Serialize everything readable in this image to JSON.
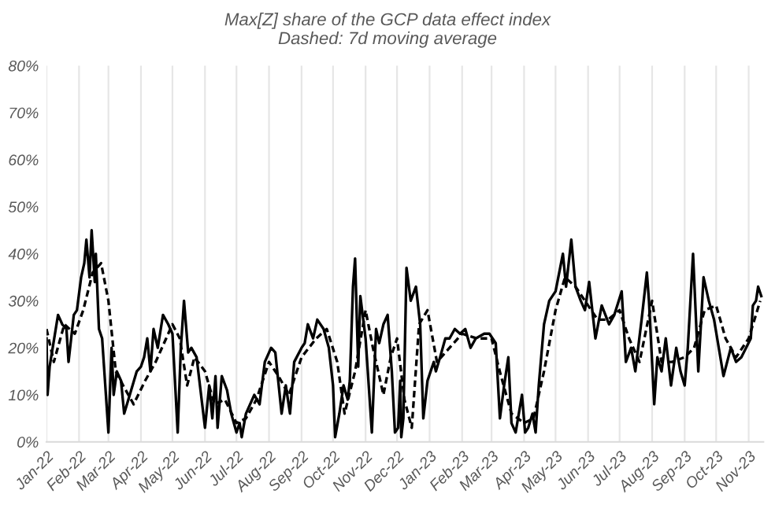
{
  "chart_data": {
    "type": "line",
    "title": "Max[Z] share of the GCP data effect index\nDashed: 7d moving average",
    "xlim": [
      "2022-01-01",
      "2023-11-15"
    ],
    "xticks": [
      {
        "value": "2022-01-01",
        "label": "Jan-22"
      },
      {
        "value": "2022-02-01",
        "label": "Feb-22"
      },
      {
        "value": "2022-03-01",
        "label": "Mar-22"
      },
      {
        "value": "2022-04-01",
        "label": "Apr-22"
      },
      {
        "value": "2022-05-01",
        "label": "May-22"
      },
      {
        "value": "2022-06-01",
        "label": "Jun-22"
      },
      {
        "value": "2022-07-01",
        "label": "Jul-22"
      },
      {
        "value": "2022-08-01",
        "label": "Aug-22"
      },
      {
        "value": "2022-09-01",
        "label": "Sep-22"
      },
      {
        "value": "2022-10-01",
        "label": "Oct-22"
      },
      {
        "value": "2022-11-01",
        "label": "Nov-22"
      },
      {
        "value": "2022-12-01",
        "label": "Dec-22"
      },
      {
        "value": "2023-01-01",
        "label": "Jan-23"
      },
      {
        "value": "2023-02-01",
        "label": "Feb-23"
      },
      {
        "value": "2023-03-01",
        "label": "Mar-23"
      },
      {
        "value": "2023-04-01",
        "label": "Apr-23"
      },
      {
        "value": "2023-05-01",
        "label": "May-23"
      },
      {
        "value": "2023-06-01",
        "label": "Jun-23"
      },
      {
        "value": "2023-07-01",
        "label": "Jul-23"
      },
      {
        "value": "2023-08-01",
        "label": "Aug-23"
      },
      {
        "value": "2023-09-01",
        "label": "Sep-23"
      },
      {
        "value": "2023-10-01",
        "label": "Oct-23"
      },
      {
        "value": "2023-11-01",
        "label": "Nov-23"
      }
    ],
    "ylim": [
      0,
      80
    ],
    "yticks": [
      {
        "value": 0,
        "label": "0%"
      },
      {
        "value": 10,
        "label": "10%"
      },
      {
        "value": 20,
        "label": "20%"
      },
      {
        "value": 30,
        "label": "30%"
      },
      {
        "value": 40,
        "label": "40%"
      },
      {
        "value": 50,
        "label": "50%"
      },
      {
        "value": 60,
        "label": "60%"
      },
      {
        "value": 70,
        "label": "70%"
      },
      {
        "value": 80,
        "label": "80%"
      }
    ],
    "grid": "x",
    "legend": false,
    "marker": "none",
    "series": [
      {
        "color": "#000000",
        "line_style": "solid",
        "x": [
          "2022-01-01",
          "2022-01-02",
          "2022-01-04",
          "2022-01-12",
          "2022-01-16",
          "2022-01-20",
          "2022-01-22",
          "2022-01-27",
          "2022-01-30",
          "2022-02-03",
          "2022-02-06",
          "2022-02-08",
          "2022-02-11",
          "2022-02-13",
          "2022-02-16",
          "2022-02-17",
          "2022-02-20",
          "2022-02-23",
          "2022-02-26",
          "2022-03-01",
          "2022-03-04",
          "2022-03-06",
          "2022-03-09",
          "2022-03-13",
          "2022-03-16",
          "2022-03-20",
          "2022-03-24",
          "2022-03-28",
          "2022-04-01",
          "2022-04-04",
          "2022-04-07",
          "2022-04-10",
          "2022-04-13",
          "2022-04-17",
          "2022-04-22",
          "2022-04-27",
          "2022-05-01",
          "2022-05-06",
          "2022-05-09",
          "2022-05-12",
          "2022-05-16",
          "2022-05-19",
          "2022-05-24",
          "2022-06-01",
          "2022-06-05",
          "2022-06-08",
          "2022-06-11",
          "2022-06-13",
          "2022-06-17",
          "2022-06-22",
          "2022-06-26",
          "2022-07-01",
          "2022-07-04",
          "2022-07-06",
          "2022-07-10",
          "2022-07-18",
          "2022-07-23",
          "2022-07-28",
          "2022-08-03",
          "2022-08-07",
          "2022-08-13",
          "2022-08-17",
          "2022-08-21",
          "2022-08-25",
          "2022-09-01",
          "2022-09-04",
          "2022-09-07",
          "2022-09-12",
          "2022-09-16",
          "2022-09-22",
          "2022-09-27",
          "2022-10-01",
          "2022-10-03",
          "2022-10-07",
          "2022-10-11",
          "2022-10-15",
          "2022-10-17",
          "2022-10-20",
          "2022-10-22",
          "2022-10-25",
          "2022-10-27",
          "2022-11-01",
          "2022-11-07",
          "2022-11-11",
          "2022-11-14",
          "2022-11-18",
          "2022-11-22",
          "2022-11-26",
          "2022-11-29",
          "2022-12-02",
          "2022-12-04",
          "2022-12-05",
          "2022-12-07",
          "2022-12-10",
          "2022-12-14",
          "2022-12-19",
          "2022-12-23",
          "2022-12-26",
          "2022-12-30",
          "2023-01-05",
          "2023-01-07",
          "2023-01-11",
          "2023-01-16",
          "2023-01-20",
          "2023-01-25",
          "2023-01-30",
          "2023-02-04",
          "2023-02-09",
          "2023-02-14",
          "2023-02-22",
          "2023-02-27",
          "2023-03-05",
          "2023-03-09",
          "2023-03-13",
          "2023-03-17",
          "2023-03-20",
          "2023-03-24",
          "2023-03-30",
          "2023-04-02",
          "2023-04-05",
          "2023-04-09",
          "2023-04-12",
          "2023-04-15",
          "2023-04-20",
          "2023-04-25",
          "2023-05-01",
          "2023-05-08",
          "2023-05-11",
          "2023-05-16",
          "2023-05-20",
          "2023-05-25",
          "2023-05-29",
          "2023-06-02",
          "2023-06-08",
          "2023-06-14",
          "2023-06-21",
          "2023-06-26",
          "2023-07-03",
          "2023-07-07",
          "2023-07-12",
          "2023-07-16",
          "2023-07-22",
          "2023-07-27",
          "2023-07-29",
          "2023-08-03",
          "2023-08-06",
          "2023-08-10",
          "2023-08-14",
          "2023-08-19",
          "2023-08-24",
          "2023-08-28",
          "2023-09-01",
          "2023-09-04",
          "2023-09-09",
          "2023-09-14",
          "2023-09-19",
          "2023-09-24",
          "2023-09-29",
          "2023-10-08",
          "2023-10-15",
          "2023-10-20",
          "2023-10-25",
          "2023-11-03",
          "2023-11-05",
          "2023-11-08",
          "2023-11-10",
          "2023-11-13"
        ],
        "values": [
          22,
          10,
          16,
          27,
          25,
          24,
          17,
          27,
          28,
          35,
          38,
          43,
          35,
          45,
          34,
          40,
          24,
          22,
          12,
          2,
          20,
          10,
          15,
          13,
          6,
          9,
          12,
          15,
          16,
          18,
          22,
          15,
          24,
          20,
          27,
          25,
          23,
          2,
          20,
          30,
          19,
          20,
          18,
          3,
          12,
          5,
          14,
          3,
          14,
          11,
          6,
          2,
          4,
          1,
          6,
          10,
          8,
          17,
          20,
          19,
          6,
          12,
          6,
          17,
          20,
          21,
          25,
          22,
          26,
          24,
          20,
          12,
          1,
          6,
          12,
          9,
          13,
          33,
          39,
          16,
          31,
          22,
          2,
          24,
          21,
          25,
          27,
          15,
          2,
          3,
          13,
          1,
          5,
          37,
          30,
          33,
          25,
          5,
          13,
          17,
          15,
          18,
          22,
          22,
          24,
          23,
          24,
          20,
          22,
          23,
          23,
          21,
          5,
          12,
          18,
          4,
          2,
          10,
          2,
          3,
          6,
          2,
          12,
          25,
          30,
          32,
          40,
          33,
          43,
          33,
          30,
          28,
          34,
          22,
          29,
          25,
          27,
          32,
          17,
          20,
          15,
          26,
          36,
          30,
          8,
          18,
          15,
          22,
          12,
          20,
          15,
          12,
          20,
          40,
          15,
          35,
          30,
          26,
          14,
          20,
          17,
          18,
          22,
          29,
          30,
          33,
          31
        ]
      },
      {
        "color": "#000000",
        "line_style": "dashed",
        "x": [
          "2022-01-01",
          "2022-01-08",
          "2022-01-18",
          "2022-01-28",
          "2022-02-05",
          "2022-02-14",
          "2022-02-22",
          "2022-03-01",
          "2022-03-08",
          "2022-03-15",
          "2022-03-25",
          "2022-04-05",
          "2022-04-15",
          "2022-04-25",
          "2022-05-01",
          "2022-05-08",
          "2022-05-15",
          "2022-05-22",
          "2022-06-01",
          "2022-06-10",
          "2022-06-20",
          "2022-07-01",
          "2022-07-10",
          "2022-07-20",
          "2022-08-01",
          "2022-08-10",
          "2022-08-20",
          "2022-09-01",
          "2022-09-15",
          "2022-09-25",
          "2022-10-05",
          "2022-10-12",
          "2022-10-22",
          "2022-11-01",
          "2022-11-08",
          "2022-11-18",
          "2022-11-25",
          "2022-12-01",
          "2022-12-08",
          "2022-12-15",
          "2022-12-22",
          "2022-12-30",
          "2023-01-08",
          "2023-01-20",
          "2023-02-01",
          "2023-02-15",
          "2023-03-01",
          "2023-03-10",
          "2023-03-20",
          "2023-04-01",
          "2023-04-10",
          "2023-04-20",
          "2023-05-01",
          "2023-05-10",
          "2023-05-20",
          "2023-06-01",
          "2023-06-10",
          "2023-06-20",
          "2023-07-01",
          "2023-07-10",
          "2023-07-20",
          "2023-08-01",
          "2023-08-10",
          "2023-08-20",
          "2023-09-01",
          "2023-09-10",
          "2023-09-20",
          "2023-10-01",
          "2023-10-10",
          "2023-10-20",
          "2023-11-01",
          "2023-11-12"
        ],
        "values": [
          24,
          17,
          25,
          23,
          28,
          36,
          38,
          30,
          15,
          12,
          8,
          13,
          17,
          22,
          25,
          22,
          12,
          18,
          15,
          8,
          9,
          4,
          5,
          9,
          17,
          14,
          10,
          18,
          22,
          24,
          17,
          6,
          15,
          28,
          20,
          10,
          18,
          22,
          9,
          3,
          25,
          28,
          17,
          20,
          23,
          22,
          22,
          14,
          6,
          4,
          5,
          15,
          28,
          35,
          33,
          29,
          26,
          26,
          28,
          22,
          17,
          30,
          17,
          17,
          18,
          20,
          28,
          29,
          22,
          18,
          22,
          30
        ]
      }
    ]
  }
}
